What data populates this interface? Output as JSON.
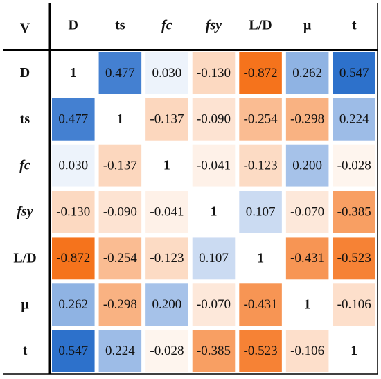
{
  "corner_label": "V",
  "variables": [
    {
      "label": "D",
      "italic": false
    },
    {
      "label": "ts",
      "italic": false
    },
    {
      "label": "fc",
      "italic": true
    },
    {
      "label": "fsy",
      "italic": true
    },
    {
      "label": "L/D",
      "italic": false
    },
    {
      "label": "μ",
      "italic": false
    },
    {
      "label": "t",
      "italic": false
    }
  ],
  "colors": {
    "positive": "#1c65c7",
    "negative": "#f5731c",
    "border": "#000000",
    "text": "#111111"
  },
  "chart_data": {
    "type": "heatmap",
    "title": "",
    "xlabel": "",
    "ylabel": "",
    "x": [
      "D",
      "ts",
      "fc",
      "fsy",
      "L/D",
      "μ",
      "t"
    ],
    "y": [
      "D",
      "ts",
      "fc",
      "fsy",
      "L/D",
      "μ",
      "t"
    ],
    "value_range": [
      -1,
      1
    ],
    "values": [
      [
        1,
        0.477,
        0.03,
        -0.13,
        -0.872,
        0.262,
        0.547
      ],
      [
        0.477,
        1,
        -0.137,
        -0.09,
        -0.254,
        -0.298,
        0.224
      ],
      [
        0.03,
        -0.137,
        1,
        -0.041,
        -0.123,
        0.2,
        -0.028
      ],
      [
        -0.13,
        -0.09,
        -0.041,
        1,
        0.107,
        -0.07,
        -0.385
      ],
      [
        -0.872,
        -0.254,
        -0.123,
        0.107,
        1,
        -0.431,
        -0.523
      ],
      [
        0.262,
        -0.298,
        0.2,
        -0.07,
        -0.431,
        1,
        -0.106
      ],
      [
        0.547,
        0.224,
        -0.028,
        -0.385,
        -0.523,
        -0.106,
        1
      ]
    ],
    "labels": [
      [
        "1",
        "0.477",
        "0.030",
        "-0.130",
        "-0.872",
        "0.262",
        "0.547"
      ],
      [
        "0.477",
        "1",
        "-0.137",
        "-0.090",
        "-0.254",
        "-0.298",
        "0.224"
      ],
      [
        "0.030",
        "-0.137",
        "1",
        "-0.041",
        "-0.123",
        "0.200",
        "-0.028"
      ],
      [
        "-0.130",
        "-0.090",
        "-0.041",
        "1",
        "0.107",
        "-0.070",
        "-0.385"
      ],
      [
        "-0.872",
        "-0.254",
        "-0.123",
        "0.107",
        "1",
        "-0.431",
        "-0.523"
      ],
      [
        "0.262",
        "-0.298",
        "0.200",
        "-0.070",
        "-0.431",
        "1",
        "-0.106"
      ],
      [
        "0.547",
        "0.224",
        "-0.028",
        "-0.385",
        "-0.523",
        "-0.106",
        "1"
      ]
    ],
    "grid": false,
    "legend": "none"
  }
}
